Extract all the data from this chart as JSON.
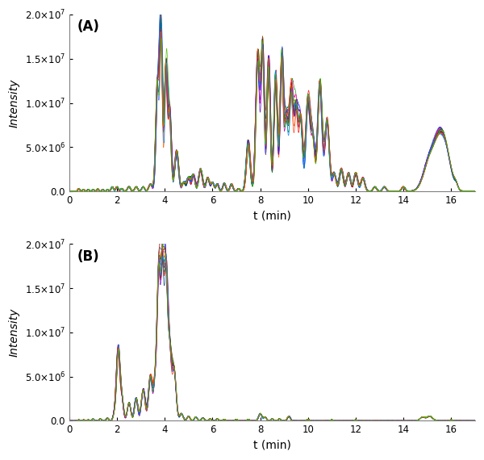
{
  "figsize": [
    6.0,
    5.7
  ],
  "dpi": 100,
  "n_traces": 17,
  "xlim": [
    0,
    17
  ],
  "ylim_A": [
    0,
    20000000.0
  ],
  "ylim_B": [
    0,
    20000000.0
  ],
  "yticks": [
    0.0,
    5000000.0,
    10000000.0,
    15000000.0,
    20000000.0
  ],
  "xticks": [
    0,
    2,
    4,
    6,
    8,
    10,
    12,
    14,
    16
  ],
  "xlabel": "t (min)",
  "ylabel": "Intensity",
  "label_A": "(A)",
  "label_B": "(B)",
  "colors": [
    "#0000FF",
    "#FF0000",
    "#00AAFF",
    "#FF6600",
    "#AA00AA",
    "#008800",
    "#FF00AA",
    "#884400",
    "#004488",
    "#CC0000",
    "#3366FF",
    "#FF3300",
    "#007744",
    "#6600CC",
    "#0088FF",
    "#FF5500",
    "#44BB00"
  ],
  "peaks_A": {
    "times": [
      0.4,
      0.6,
      0.8,
      1.0,
      1.2,
      1.4,
      1.6,
      1.8,
      2.0,
      2.2,
      2.5,
      2.8,
      3.1,
      3.4,
      3.7,
      3.85,
      4.05,
      4.2,
      4.5,
      4.8,
      5.0,
      5.2,
      5.5,
      5.8,
      6.0,
      6.2,
      6.5,
      6.8,
      7.1,
      7.5,
      7.9,
      8.1,
      8.35,
      8.65,
      8.9,
      9.1,
      9.3,
      9.5,
      9.7,
      10.0,
      10.2,
      10.5,
      10.8,
      11.1,
      11.4,
      11.7,
      12.0,
      12.3,
      12.8,
      13.2,
      14.0,
      15.1,
      15.5,
      15.8,
      16.2
    ],
    "heights": [
      300000.0,
      200000.0,
      200000.0,
      200000.0,
      250000.0,
      200000.0,
      200000.0,
      500000.0,
      500000.0,
      300000.0,
      500000.0,
      500000.0,
      500000.0,
      800000.0,
      12000000.0,
      17500000.0,
      13500000.0,
      9000000.0,
      4500000.0,
      1000000.0,
      1500000.0,
      1800000.0,
      2500000.0,
      1500000.0,
      1000000.0,
      800000.0,
      900000.0,
      800000.0,
      300000.0,
      5500000.0,
      15000000.0,
      16000000.0,
      14500000.0,
      13000000.0,
      15000000.0,
      8000000.0,
      11000000.0,
      9000000.0,
      8000000.0,
      10000000.0,
      6000000.0,
      12000000.0,
      8000000.0,
      2000000.0,
      2500000.0,
      2000000.0,
      2000000.0,
      1500000.0,
      500000.0,
      500000.0,
      500000.0,
      3500000.0,
      4500000.0,
      3500000.0,
      500000.0
    ],
    "widths": [
      0.04,
      0.04,
      0.04,
      0.04,
      0.04,
      0.04,
      0.04,
      0.05,
      0.05,
      0.05,
      0.06,
      0.06,
      0.06,
      0.07,
      0.07,
      0.06,
      0.06,
      0.07,
      0.08,
      0.07,
      0.07,
      0.07,
      0.08,
      0.07,
      0.06,
      0.06,
      0.06,
      0.06,
      0.05,
      0.08,
      0.08,
      0.07,
      0.07,
      0.07,
      0.07,
      0.08,
      0.08,
      0.08,
      0.08,
      0.09,
      0.09,
      0.09,
      0.09,
      0.08,
      0.08,
      0.08,
      0.08,
      0.08,
      0.07,
      0.07,
      0.07,
      0.25,
      0.22,
      0.22,
      0.07
    ]
  },
  "peaks_B": {
    "times": [
      0.4,
      0.6,
      0.8,
      1.0,
      1.3,
      1.6,
      1.9,
      2.05,
      2.2,
      2.5,
      2.8,
      3.1,
      3.4,
      3.6,
      3.75,
      3.9,
      4.05,
      4.2,
      4.4,
      4.7,
      5.0,
      5.3,
      5.6,
      5.9,
      6.2,
      6.5,
      7.0,
      7.5,
      8.0,
      8.2,
      8.5,
      8.8,
      9.2,
      10.0,
      11.0,
      12.0,
      14.8,
      15.1,
      16.0
    ],
    "heights": [
      100000.0,
      100000.0,
      100000.0,
      200000.0,
      200000.0,
      300000.0,
      800000.0,
      8000000.0,
      2500000.0,
      2000000.0,
      2500000.0,
      3500000.0,
      5000000.0,
      4000000.0,
      16200000.0,
      16000000.0,
      15500000.0,
      8000000.0,
      5500000.0,
      800000.0,
      500000.0,
      400000.0,
      300000.0,
      200000.0,
      200000.0,
      150000.0,
      150000.0,
      150000.0,
      800000.0,
      400000.0,
      200000.0,
      200000.0,
      500000.0,
      150000.0,
      100000.0,
      100000.0,
      400000.0,
      500000.0,
      100000.0
    ],
    "widths": [
      0.04,
      0.04,
      0.04,
      0.04,
      0.05,
      0.05,
      0.06,
      0.07,
      0.07,
      0.07,
      0.07,
      0.08,
      0.08,
      0.07,
      0.07,
      0.07,
      0.07,
      0.08,
      0.08,
      0.07,
      0.06,
      0.06,
      0.06,
      0.05,
      0.05,
      0.05,
      0.05,
      0.05,
      0.07,
      0.06,
      0.05,
      0.05,
      0.06,
      0.05,
      0.05,
      0.05,
      0.1,
      0.12,
      0.05
    ]
  }
}
